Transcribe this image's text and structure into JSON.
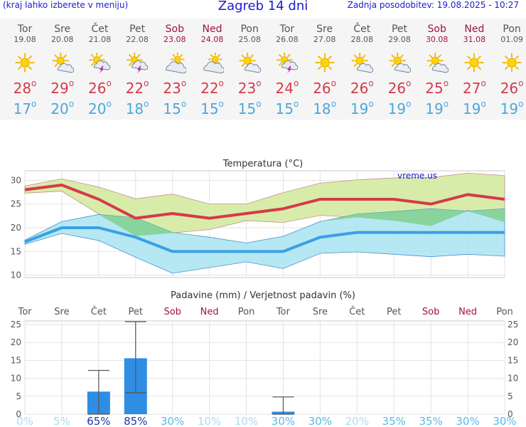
{
  "header": {
    "menu_hint": "(kraj lahko izberete v meniju)",
    "title": "Zagreb 14 dni",
    "updated": "Zadnja posodobitev: 19.08.2025 - 10:27"
  },
  "colors": {
    "weekday": "#555555",
    "weekend": "#a0104a",
    "max_temp": "#d63a4a",
    "min_temp": "#4aa8dc",
    "max_band": "#d8ecaa",
    "min_band": "#a8e4f0",
    "overlap_band": "#7fcf8a",
    "precip_bar": "#2f8de4"
  },
  "days": [
    {
      "name": "Tor",
      "date": "19.08",
      "weekend": false,
      "icon": "sun-icon",
      "max": "28",
      "min": "17"
    },
    {
      "name": "Sre",
      "date": "20.08",
      "weekend": false,
      "icon": "partly-cloudy-icon",
      "max": "29",
      "min": "20"
    },
    {
      "name": "Čet",
      "date": "21.08",
      "weekend": false,
      "icon": "thunderstorm-sun-icon",
      "max": "26",
      "min": "20"
    },
    {
      "name": "Pet",
      "date": "22.08",
      "weekend": false,
      "icon": "thunderstorm-sun-icon",
      "max": "22",
      "min": "18"
    },
    {
      "name": "Sob",
      "date": "23.08",
      "weekend": true,
      "icon": "mostly-cloudy-icon",
      "max": "23",
      "min": "15"
    },
    {
      "name": "Ned",
      "date": "24.08",
      "weekend": true,
      "icon": "mostly-cloudy-icon",
      "max": "22",
      "min": "15"
    },
    {
      "name": "Pon",
      "date": "25.08",
      "weekend": false,
      "icon": "partly-cloudy-icon",
      "max": "23",
      "min": "15"
    },
    {
      "name": "Tor",
      "date": "26.08",
      "weekend": false,
      "icon": "thunderstorm-sun-icon",
      "max": "24",
      "min": "15"
    },
    {
      "name": "Sre",
      "date": "27.08",
      "weekend": false,
      "icon": "sun-icon",
      "max": "26",
      "min": "18"
    },
    {
      "name": "Čet",
      "date": "28.08",
      "weekend": false,
      "icon": "partly-cloudy-icon",
      "max": "26",
      "min": "19"
    },
    {
      "name": "Pet",
      "date": "29.08",
      "weekend": false,
      "icon": "partly-cloudy-icon",
      "max": "26",
      "min": "19"
    },
    {
      "name": "Sob",
      "date": "30.08",
      "weekend": true,
      "icon": "partly-cloudy-icon",
      "max": "25",
      "min": "19"
    },
    {
      "name": "Ned",
      "date": "31.08",
      "weekend": true,
      "icon": "sun-icon",
      "max": "27",
      "min": "19"
    },
    {
      "name": "Pon",
      "date": "01.09",
      "weekend": false,
      "icon": "sun-icon",
      "max": "26",
      "min": "19"
    }
  ],
  "degree_symbol": "o",
  "chart_data": [
    {
      "type": "line",
      "title": "Temperatura (°C)",
      "watermark": "vreme.us",
      "x": [
        "19.08",
        "20.08",
        "21.08",
        "22.08",
        "23.08",
        "24.08",
        "25.08",
        "26.08",
        "27.08",
        "28.08",
        "29.08",
        "30.08",
        "31.08",
        "01.09"
      ],
      "ylim": [
        9.5,
        32
      ],
      "yticks": [
        10,
        15,
        20,
        25,
        30
      ],
      "grid": true,
      "series": [
        {
          "values": [
            28,
            29,
            26,
            22,
            23,
            22,
            23,
            24,
            26,
            26,
            26,
            25,
            27,
            26
          ]
        },
        {
          "values": [
            17,
            20,
            20,
            18,
            15,
            15,
            15,
            15,
            18,
            19,
            19,
            19,
            19,
            19
          ]
        }
      ],
      "max_range": {
        "upper": [
          28.8,
          30.3,
          28.6,
          26.1,
          27.1,
          25.0,
          25.0,
          27.4,
          29.4,
          30.1,
          30.5,
          30.6,
          31.5,
          31.0
        ],
        "lower": [
          27.3,
          27.7,
          22.9,
          18.3,
          18.9,
          19.6,
          21.5,
          21.1,
          22.6,
          22.2,
          21.5,
          20.4,
          23.7,
          21.2
        ]
      },
      "min_range": {
        "upper": [
          17.4,
          21.3,
          22.8,
          22.1,
          19.0,
          18.0,
          16.8,
          18.2,
          21.3,
          22.9,
          23.4,
          24.0,
          23.5,
          24.0
        ],
        "lower": [
          16.5,
          18.8,
          17.3,
          13.8,
          10.4,
          11.6,
          12.8,
          11.4,
          14.6,
          14.9,
          14.4,
          13.9,
          14.4,
          14.0
        ]
      }
    },
    {
      "type": "bar",
      "title": "Padavine (mm) / Verjetnost padavin (%)",
      "categories": [
        "Tor",
        "Sre",
        "Čet",
        "Pet",
        "Sob",
        "Ned",
        "Pon",
        "Tor",
        "Sre",
        "Čet",
        "Pet",
        "Sob",
        "Ned",
        "Pon"
      ],
      "weekend": [
        false,
        false,
        false,
        false,
        true,
        true,
        false,
        false,
        false,
        false,
        false,
        true,
        true,
        false
      ],
      "ylim": [
        0,
        26
      ],
      "yticks": [
        0,
        5,
        10,
        15,
        20,
        25
      ],
      "grid": true,
      "values": [
        0,
        0,
        6.3,
        15.6,
        0,
        0,
        0,
        0.7,
        0,
        0,
        0,
        0,
        0,
        0
      ],
      "error_high": [
        null,
        null,
        12.2,
        25.8,
        null,
        null,
        null,
        4.8,
        null,
        null,
        null,
        null,
        null,
        null
      ],
      "error_low": [
        null,
        null,
        0,
        6,
        null,
        null,
        null,
        0,
        null,
        null,
        null,
        null,
        null,
        null
      ],
      "probability": [
        "0%",
        "5%",
        "65%",
        "85%",
        "30%",
        "10%",
        "10%",
        "30%",
        "30%",
        "20%",
        "35%",
        "35%",
        "30%",
        "30%"
      ],
      "probability_colors": [
        "#a8dcf0",
        "#a8dcf0",
        "#1a3aa8",
        "#1a3aa8",
        "#5ab8e6",
        "#a8dcf0",
        "#a8dcf0",
        "#5ab8e6",
        "#5ab8e6",
        "#a8dcf0",
        "#5ab8e6",
        "#5ab8e6",
        "#5ab8e6",
        "#5ab8e6"
      ]
    }
  ]
}
